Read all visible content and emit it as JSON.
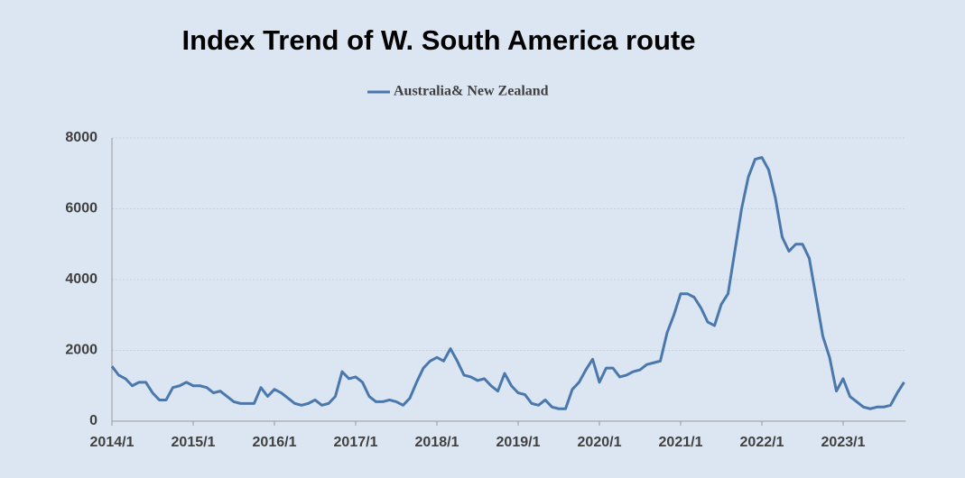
{
  "chart_data": {
    "type": "line",
    "title": "Index Trend of W. South America route",
    "categories": [
      "2014/1",
      null,
      null,
      null,
      null,
      null,
      null,
      null,
      null,
      null,
      null,
      null,
      "2015/1",
      null,
      null,
      null,
      null,
      null,
      null,
      null,
      null,
      null,
      null,
      null,
      "2016/1",
      null,
      null,
      null,
      null,
      null,
      null,
      null,
      null,
      null,
      null,
      null,
      "2017/1",
      null,
      null,
      null,
      null,
      null,
      null,
      null,
      null,
      null,
      null,
      null,
      "2018/1",
      null,
      null,
      null,
      null,
      null,
      null,
      null,
      null,
      null,
      null,
      null,
      "2019/1",
      null,
      null,
      null,
      null,
      null,
      null,
      null,
      null,
      null,
      null,
      null,
      "2020/1",
      null,
      null,
      null,
      null,
      null,
      null,
      null,
      null,
      null,
      null,
      null,
      "2021/1",
      null,
      null,
      null,
      null,
      null,
      null,
      null,
      null,
      null,
      null,
      null,
      "2022/1",
      null,
      null,
      null,
      null,
      null,
      null,
      null,
      null,
      null,
      null,
      null,
      "2023/1",
      null,
      null,
      null,
      null,
      null,
      null,
      null,
      null,
      null
    ],
    "series": [
      {
        "name": "Australia& New Zealand",
        "color": "#4a78ad",
        "values": [
          1550,
          1300,
          1200,
          1000,
          1100,
          1100,
          800,
          600,
          600,
          950,
          1000,
          1100,
          1000,
          1000,
          950,
          800,
          850,
          700,
          550,
          500,
          500,
          500,
          950,
          700,
          900,
          800,
          650,
          500,
          450,
          500,
          600,
          450,
          500,
          700,
          1400,
          1200,
          1250,
          1100,
          700,
          550,
          550,
          600,
          550,
          450,
          650,
          1100,
          1500,
          1700,
          1800,
          1700,
          2050,
          1700,
          1300,
          1250,
          1150,
          1200,
          1000,
          850,
          1350,
          1000,
          800,
          750,
          500,
          450,
          600,
          400,
          350,
          350,
          900,
          1100,
          1450,
          1750,
          1100,
          1500,
          1500,
          1250,
          1300,
          1400,
          1450,
          1600,
          1650,
          1700,
          2500,
          3000,
          3600,
          3600,
          3500,
          3200,
          2800,
          2700,
          3300,
          3600,
          4800,
          6000,
          6900,
          7400,
          7450,
          7100,
          6300,
          5200,
          4800,
          5000,
          5000,
          4600,
          3500,
          2400,
          1800,
          850,
          1200,
          700,
          550,
          400,
          350,
          400,
          400,
          450,
          800,
          1100
        ]
      }
    ],
    "ylim": [
      0,
      8000
    ],
    "yticks": [
      0,
      2000,
      4000,
      6000,
      8000
    ],
    "grid": true
  }
}
